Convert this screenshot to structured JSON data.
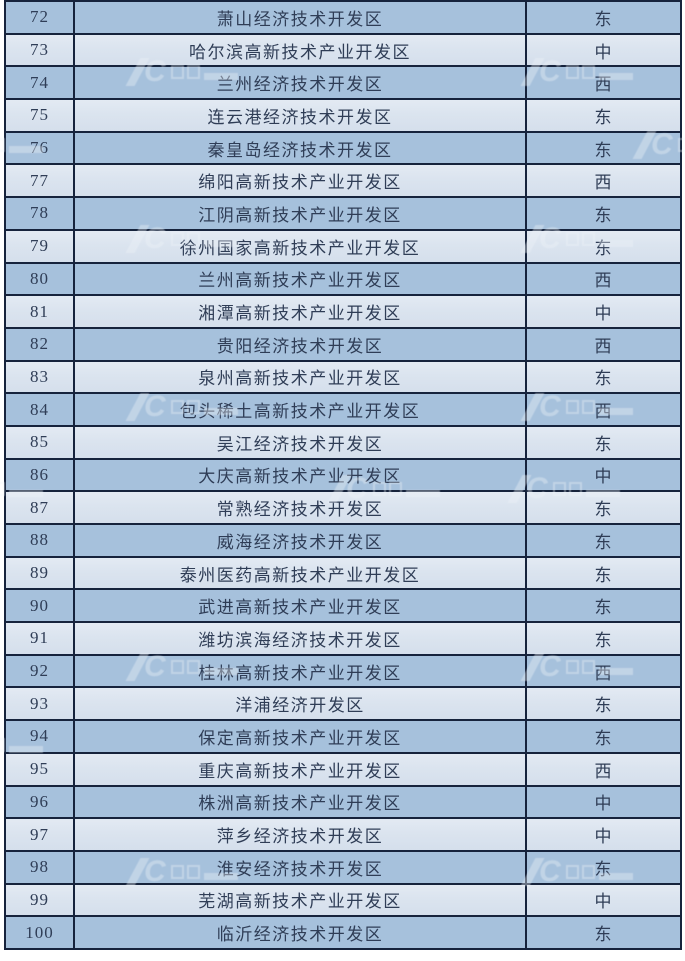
{
  "table": {
    "description": "Ranking list of China national economic and hi-tech development zones, entries 72-100, with region column (East/Central/West)",
    "rows": [
      {
        "rank": "72",
        "name": "萧山经济技术开发区",
        "region": "东"
      },
      {
        "rank": "73",
        "name": "哈尔滨高新技术产业开发区",
        "region": "中"
      },
      {
        "rank": "74",
        "name": "兰州经济技术开发区",
        "region": "西"
      },
      {
        "rank": "75",
        "name": "连云港经济技术开发区",
        "region": "东"
      },
      {
        "rank": "76",
        "name": "秦皇岛经济技术开发区",
        "region": "东"
      },
      {
        "rank": "77",
        "name": "绵阳高新技术产业开发区",
        "region": "西"
      },
      {
        "rank": "78",
        "name": "江阴高新技术产业开发区",
        "region": "东"
      },
      {
        "rank": "79",
        "name": "徐州国家高新技术产业开发区",
        "region": "东"
      },
      {
        "rank": "80",
        "name": "兰州高新技术产业开发区",
        "region": "西"
      },
      {
        "rank": "81",
        "name": "湘潭高新技术产业开发区",
        "region": "中"
      },
      {
        "rank": "82",
        "name": "贵阳经济技术开发区",
        "region": "西"
      },
      {
        "rank": "83",
        "name": "泉州高新技术产业开发区",
        "region": "东"
      },
      {
        "rank": "84",
        "name": "包头稀土高新技术产业开发区",
        "region": "西"
      },
      {
        "rank": "85",
        "name": "吴江经济技术开发区",
        "region": "东"
      },
      {
        "rank": "86",
        "name": "大庆高新技术产业开发区",
        "region": "中"
      },
      {
        "rank": "87",
        "name": "常熟经济技术开发区",
        "region": "东"
      },
      {
        "rank": "88",
        "name": "威海经济技术开发区",
        "region": "东"
      },
      {
        "rank": "89",
        "name": "泰州医药高新技术产业开发区",
        "region": "东"
      },
      {
        "rank": "90",
        "name": "武进高新技术产业开发区",
        "region": "东"
      },
      {
        "rank": "91",
        "name": "潍坊滨海经济技术开发区",
        "region": "东"
      },
      {
        "rank": "92",
        "name": "桂林高新技术产业开发区",
        "region": "西"
      },
      {
        "rank": "93",
        "name": "洋浦经济开发区",
        "region": "东"
      },
      {
        "rank": "94",
        "name": "保定高新技术产业开发区",
        "region": "东"
      },
      {
        "rank": "95",
        "name": "重庆高新技术产业开发区",
        "region": "西"
      },
      {
        "rank": "96",
        "name": "株洲高新技术产业开发区",
        "region": "中"
      },
      {
        "rank": "97",
        "name": "萍乡经济技术开发区",
        "region": "中"
      },
      {
        "rank": "98",
        "name": "淮安经济技术开发区",
        "region": "东"
      },
      {
        "rank": "99",
        "name": "芜湖高新技术产业开发区",
        "region": "中"
      },
      {
        "rank": "100",
        "name": "临沂经济技术开发区",
        "region": "东"
      }
    ]
  },
  "colors": {
    "row_even_bg": "#a6c1dc",
    "row_odd_bg": "#dbe4ef",
    "border": "#16233c",
    "text": "#2f3d56",
    "watermark": "#eef3f8"
  },
  "watermark": {
    "glyph": "C",
    "icon": "c-logo-watermark-icon"
  }
}
